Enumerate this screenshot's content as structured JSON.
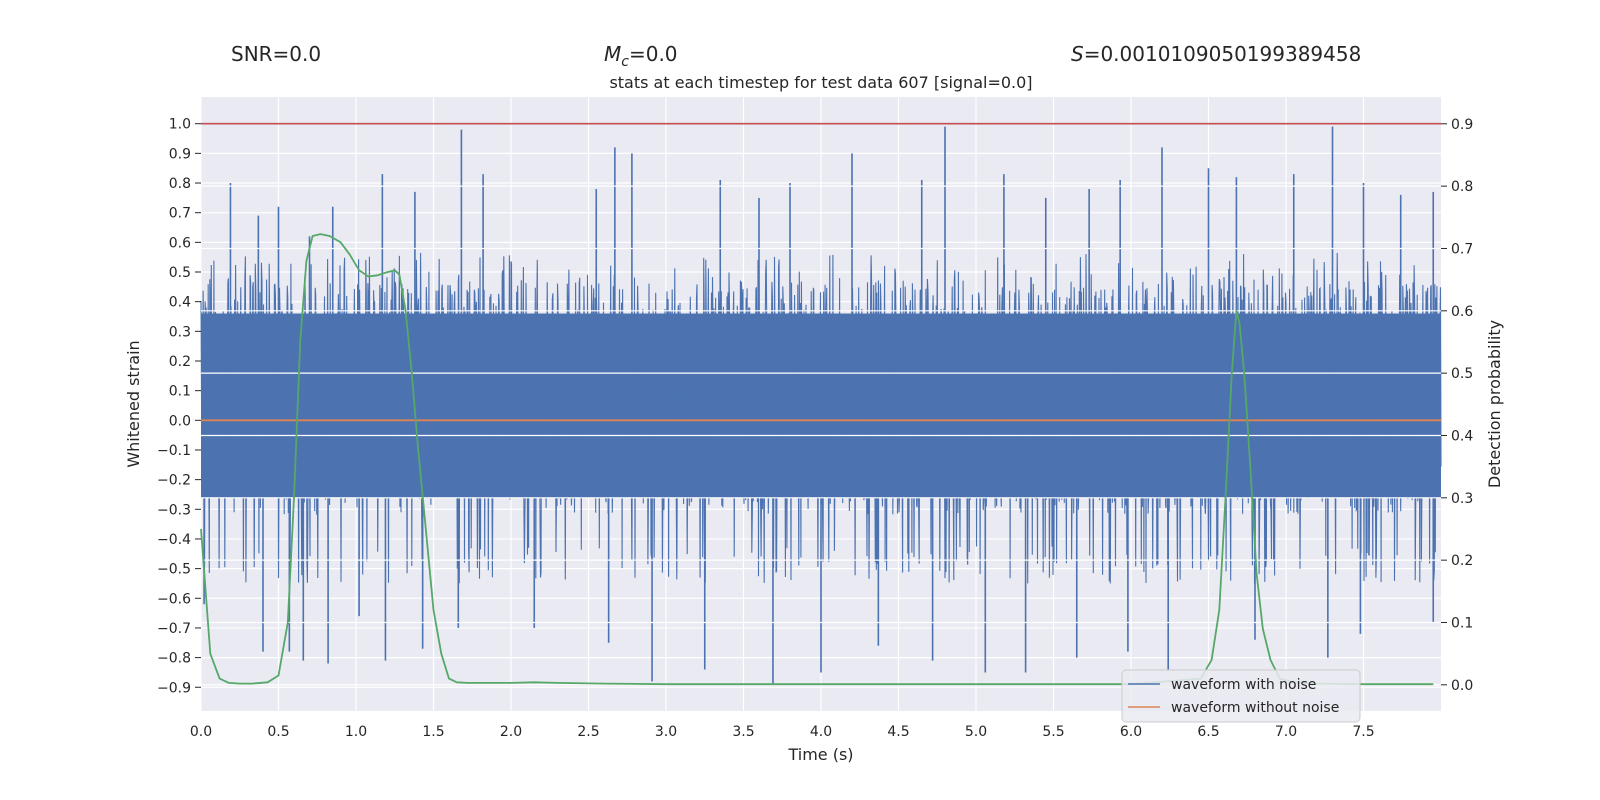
{
  "header": {
    "snr_label": "SNR=0.0",
    "mc_symbol": "M",
    "mc_sub": "c",
    "mc_value": "=0.0",
    "s_symbol": "S",
    "s_value": "=0.0010109050199389458"
  },
  "chart_data": {
    "type": "line",
    "title": "stats at each timestep for test data 607 [signal=0.0]",
    "xlabel": "Time (s)",
    "ylabel": "Whitened strain",
    "y2label": "Detection probability",
    "xlim": [
      0.0,
      8.0
    ],
    "ylim": [
      -0.98,
      1.09
    ],
    "y2lim": [
      -0.042,
      0.943
    ],
    "x_ticks": [
      "0.0",
      "0.5",
      "1.0",
      "1.5",
      "2.0",
      "2.5",
      "3.0",
      "3.5",
      "4.0",
      "4.5",
      "5.0",
      "5.5",
      "6.0",
      "6.5",
      "7.0",
      "7.5"
    ],
    "y_ticks": [
      "1.0",
      "0.9",
      "0.8",
      "0.7",
      "0.6",
      "0.5",
      "0.4",
      "0.3",
      "0.2",
      "0.1",
      "0.0",
      "−0.1",
      "−0.2",
      "−0.3",
      "−0.4",
      "−0.5",
      "−0.6",
      "−0.7",
      "−0.8",
      "−0.9"
    ],
    "y2_ticks": [
      "0.9",
      "0.8",
      "0.7",
      "0.6",
      "0.5",
      "0.4",
      "0.3",
      "0.2",
      "0.1",
      "0.0"
    ],
    "threshold_line": {
      "axis": "left",
      "value": 1.0,
      "color": "#c44e52"
    },
    "colors": {
      "noise": "#4c72b0",
      "clean": "#dd8452",
      "prob": "#55a868",
      "bg": "#eaeaf2",
      "grid": "#ffffff"
    },
    "series": [
      {
        "name": "waveform with noise",
        "axis": "left",
        "kind": "dense-noise",
        "typical_range": [
          -0.3,
          0.45
        ],
        "envelope_upper": 0.55,
        "envelope_lower": -0.5,
        "peaks": [
          [
            0.19,
            0.8
          ],
          [
            0.37,
            0.69
          ],
          [
            0.5,
            0.72
          ],
          [
            0.7,
            0.62
          ],
          [
            0.85,
            0.72
          ],
          [
            1.17,
            0.83
          ],
          [
            1.38,
            0.77
          ],
          [
            1.68,
            0.98
          ],
          [
            1.82,
            0.83
          ],
          [
            2.55,
            0.78
          ],
          [
            2.67,
            0.92
          ],
          [
            2.78,
            0.9
          ],
          [
            3.35,
            0.81
          ],
          [
            3.6,
            0.75
          ],
          [
            3.8,
            0.8
          ],
          [
            4.2,
            0.9
          ],
          [
            4.65,
            0.81
          ],
          [
            4.8,
            0.99
          ],
          [
            5.18,
            0.83
          ],
          [
            5.45,
            0.75
          ],
          [
            5.73,
            0.78
          ],
          [
            5.93,
            0.81
          ],
          [
            6.2,
            0.92
          ],
          [
            6.5,
            0.85
          ],
          [
            6.68,
            0.82
          ],
          [
            7.05,
            0.83
          ],
          [
            7.3,
            0.99
          ],
          [
            7.5,
            0.8
          ],
          [
            7.74,
            0.76
          ],
          [
            7.95,
            0.77
          ]
        ],
        "troughs": [
          [
            0.02,
            -0.62
          ],
          [
            0.4,
            -0.78
          ],
          [
            0.57,
            -0.78
          ],
          [
            0.66,
            -0.81
          ],
          [
            0.82,
            -0.82
          ],
          [
            1.02,
            -0.66
          ],
          [
            1.19,
            -0.81
          ],
          [
            1.43,
            -0.77
          ],
          [
            1.66,
            -0.7
          ],
          [
            2.15,
            -0.7
          ],
          [
            2.63,
            -0.75
          ],
          [
            2.91,
            -0.88
          ],
          [
            3.25,
            -0.84
          ],
          [
            3.69,
            -0.89
          ],
          [
            4.0,
            -0.85
          ],
          [
            4.37,
            -0.76
          ],
          [
            4.72,
            -0.81
          ],
          [
            5.06,
            -0.85
          ],
          [
            5.32,
            -0.85
          ],
          [
            5.65,
            -0.8
          ],
          [
            5.98,
            -0.78
          ],
          [
            6.24,
            -0.84
          ],
          [
            6.8,
            -0.74
          ],
          [
            7.27,
            -0.8
          ],
          [
            7.48,
            -0.72
          ],
          [
            7.95,
            -0.68
          ]
        ]
      },
      {
        "name": "waveform without noise",
        "axis": "left",
        "x": [
          0.0,
          8.0
        ],
        "y": [
          0.0,
          0.0
        ]
      },
      {
        "name": "detection probability",
        "axis": "right",
        "x": [
          0.0,
          0.06,
          0.12,
          0.18,
          0.25,
          0.33,
          0.43,
          0.5,
          0.56,
          0.6,
          0.64,
          0.68,
          0.72,
          0.77,
          0.83,
          0.9,
          0.96,
          1.02,
          1.08,
          1.14,
          1.2,
          1.25,
          1.28,
          1.32,
          1.36,
          1.4,
          1.45,
          1.5,
          1.55,
          1.6,
          1.65,
          1.72,
          1.85,
          2.0,
          2.15,
          2.3,
          2.6,
          3.0,
          4.0,
          5.0,
          6.0,
          6.45,
          6.52,
          6.57,
          6.61,
          6.65,
          6.68,
          6.7,
          6.73,
          6.77,
          6.81,
          6.85,
          6.9,
          6.96,
          7.05,
          7.2,
          7.5,
          7.95
        ],
        "y": [
          0.25,
          0.05,
          0.01,
          0.003,
          0.002,
          0.002,
          0.004,
          0.015,
          0.1,
          0.3,
          0.55,
          0.68,
          0.72,
          0.723,
          0.72,
          0.71,
          0.69,
          0.665,
          0.655,
          0.657,
          0.662,
          0.665,
          0.658,
          0.6,
          0.5,
          0.38,
          0.25,
          0.12,
          0.05,
          0.01,
          0.004,
          0.003,
          0.003,
          0.003,
          0.004,
          0.003,
          0.002,
          0.001,
          0.001,
          0.001,
          0.001,
          0.01,
          0.04,
          0.12,
          0.3,
          0.5,
          0.6,
          0.58,
          0.5,
          0.35,
          0.18,
          0.09,
          0.04,
          0.01,
          0.004,
          0.002,
          0.001,
          0.001
        ]
      }
    ],
    "legend": {
      "location": "lower-right",
      "entries": [
        "waveform with noise",
        "waveform without noise"
      ]
    }
  }
}
